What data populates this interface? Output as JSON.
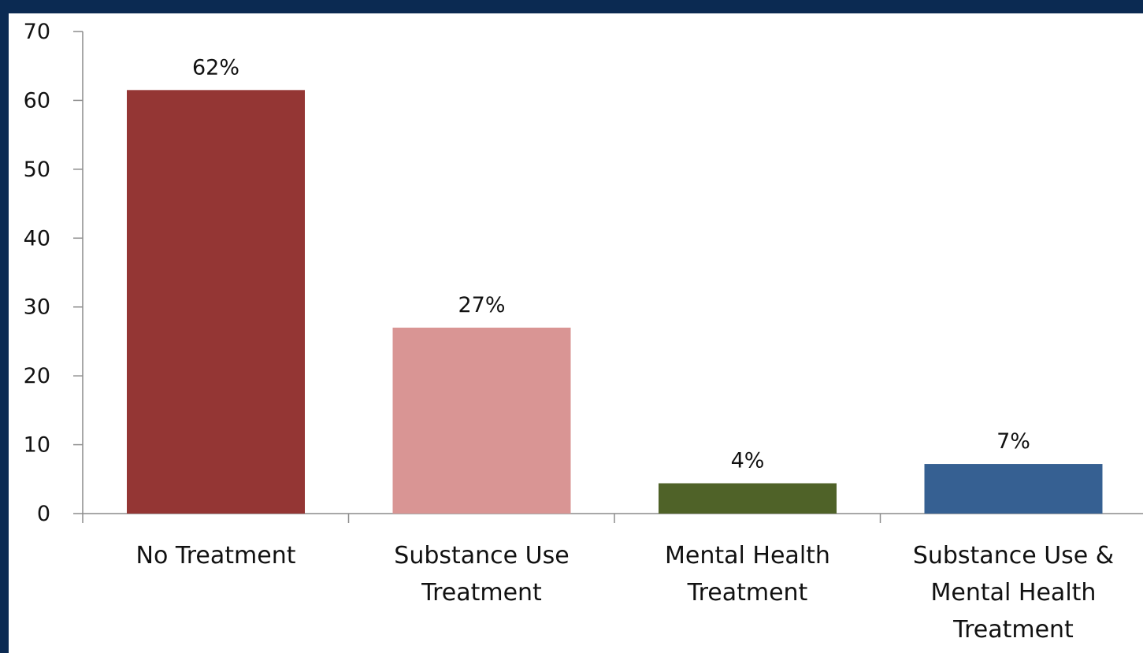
{
  "chart_data": {
    "type": "bar",
    "categories": [
      [
        "No Treatment"
      ],
      [
        "Substance Use",
        "Treatment"
      ],
      [
        "Mental Health",
        "Treatment"
      ],
      [
        "Substance Use &",
        "Mental Health",
        "Treatment"
      ]
    ],
    "values": [
      61.5,
      27,
      4.4,
      7.2
    ],
    "data_labels": [
      "62%",
      "27%",
      "4%",
      "7%"
    ],
    "colors": [
      "#943634",
      "#d99594",
      "#4f6228",
      "#366092"
    ],
    "yticks": [
      "0",
      "10",
      "20",
      "30",
      "40",
      "50",
      "60",
      "70"
    ],
    "ylim": [
      0,
      70
    ],
    "grid": false,
    "legend": "none",
    "frame_color": "#0b2a52"
  }
}
